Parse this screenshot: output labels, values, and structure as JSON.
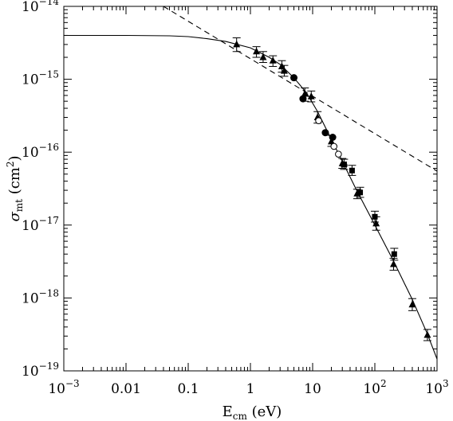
{
  "chart_data": {
    "type": "scatter",
    "xscale": "log",
    "yscale": "log",
    "xlim": [
      0.001,
      1000
    ],
    "ylim": [
      1e-19,
      1e-14
    ],
    "xlabel": {
      "base": "E",
      "sub": "cm",
      "rest": " (eV)"
    },
    "ylabel": {
      "base": "σ",
      "sub": "mt",
      "rest": " (cm",
      "sup": "2",
      "end": ")"
    },
    "xticks": [
      {
        "value": 0.001,
        "base": "10",
        "exp": "−3"
      },
      {
        "value": 0.01,
        "base": "0.01",
        "exp": ""
      },
      {
        "value": 0.1,
        "base": "0.1",
        "exp": ""
      },
      {
        "value": 1,
        "base": "1",
        "exp": ""
      },
      {
        "value": 10,
        "base": "10",
        "exp": ""
      },
      {
        "value": 100,
        "base": "10",
        "exp": "2"
      },
      {
        "value": 1000,
        "base": "10",
        "exp": "3"
      }
    ],
    "yticks": [
      {
        "value": 1e-19,
        "base": "10",
        "exp": "−19"
      },
      {
        "value": 1e-18,
        "base": "10",
        "exp": "−18"
      },
      {
        "value": 1e-17,
        "base": "10",
        "exp": "−17"
      },
      {
        "value": 1e-16,
        "base": "10",
        "exp": "−16"
      },
      {
        "value": 1e-15,
        "base": "10",
        "exp": "−15"
      },
      {
        "value": 1e-14,
        "base": "10",
        "exp": "−14"
      }
    ],
    "series": [
      {
        "marker": "triangle",
        "points": [
          {
            "x": 0.6,
            "y": 3e-15,
            "elo": 2.4e-15,
            "ehi": 3.7e-15
          },
          {
            "x": 1.25,
            "y": 2.4e-15,
            "elo": 2e-15,
            "ehi": 2.8e-15
          },
          {
            "x": 1.6,
            "y": 2e-15,
            "elo": 1.7e-15,
            "ehi": 2.4e-15
          },
          {
            "x": 2.3,
            "y": 1.8e-15,
            "elo": 1.5e-15,
            "ehi": 2.1e-15
          },
          {
            "x": 3.2,
            "y": 1.5e-15,
            "elo": 1.25e-15,
            "ehi": 1.8e-15
          },
          {
            "x": 3.5,
            "y": 1.3e-15,
            "elo": 1.1e-15,
            "ehi": 1.55e-15
          },
          {
            "x": 7.5,
            "y": 6.3e-16,
            "elo": 5e-16,
            "ehi": 7.6e-16
          },
          {
            "x": 9.5,
            "y": 5.8e-16,
            "elo": 4.9e-16,
            "ehi": 6.9e-16
          },
          {
            "x": 12,
            "y": 3e-16,
            "elo": 2.5e-16,
            "ehi": 3.6e-16
          },
          {
            "x": 20,
            "y": 1.4e-16,
            "elo": 1.2e-16,
            "ehi": 1.7e-16
          },
          {
            "x": 30,
            "y": 7e-17,
            "elo": 6e-17,
            "ehi": 8.2e-17
          },
          {
            "x": 52,
            "y": 2.7e-17,
            "elo": 2.3e-17,
            "ehi": 3.1e-17
          },
          {
            "x": 105,
            "y": 1.05e-17,
            "elo": 8.5e-18,
            "ehi": 1.3e-17
          },
          {
            "x": 200,
            "y": 2.9e-18,
            "elo": 2.4e-18,
            "ehi": 3.5e-18
          },
          {
            "x": 400,
            "y": 8.1e-19,
            "elo": 6.7e-19,
            "ehi": 9.8e-19
          },
          {
            "x": 700,
            "y": 3.1e-19,
            "elo": 2.6e-19,
            "ehi": 3.7e-19
          }
        ]
      },
      {
        "marker": "filled-circle",
        "points": [
          {
            "x": 5.0,
            "y": 1.05e-15
          },
          {
            "x": 7.0,
            "y": 5.4e-16
          },
          {
            "x": 16,
            "y": 1.85e-16
          },
          {
            "x": 21,
            "y": 1.6e-16
          }
        ]
      },
      {
        "marker": "open-circle",
        "points": [
          {
            "x": 12.5,
            "y": 2.7e-16
          },
          {
            "x": 22,
            "y": 1.2e-16
          },
          {
            "x": 26,
            "y": 9.4e-17
          },
          {
            "x": 32,
            "y": 6.6e-17
          }
        ]
      },
      {
        "marker": "filled-square",
        "points": [
          {
            "x": 32,
            "y": 6.8e-17,
            "elo": 5.8e-17,
            "ehi": 8e-17
          },
          {
            "x": 43,
            "y": 5.6e-17,
            "elo": 4.8e-17,
            "ehi": 6.6e-17
          },
          {
            "x": 58,
            "y": 2.8e-17,
            "elo": 2.4e-17,
            "ehi": 3.3e-17
          },
          {
            "x": 100,
            "y": 1.3e-17,
            "elo": 1.1e-17,
            "ehi": 1.55e-17
          },
          {
            "x": 205,
            "y": 4e-18,
            "elo": 3.3e-18,
            "ehi": 4.8e-18
          }
        ]
      }
    ],
    "curves": [
      {
        "style": "solid",
        "points": [
          [
            0.001,
            4e-15
          ],
          [
            0.01,
            4e-15
          ],
          [
            0.05,
            3.95e-15
          ],
          [
            0.1,
            3.85e-15
          ],
          [
            0.2,
            3.6e-15
          ],
          [
            0.4,
            3.3e-15
          ],
          [
            1,
            2.7e-15
          ],
          [
            2,
            2e-15
          ],
          [
            3,
            1.6e-15
          ],
          [
            5,
            1.05e-15
          ],
          [
            8,
            6.5e-16
          ],
          [
            12,
            3.6e-16
          ],
          [
            20,
            1.5e-16
          ],
          [
            30,
            7.5e-17
          ],
          [
            50,
            3.1e-17
          ],
          [
            100,
            1e-17
          ],
          [
            200,
            3.2e-18
          ],
          [
            400,
            9.5e-19
          ],
          [
            700,
            3.2e-19
          ],
          [
            1000,
            1.45e-19
          ]
        ]
      },
      {
        "style": "dashed",
        "points": [
          [
            0.04,
            1e-14
          ],
          [
            1000,
            5.5e-17
          ]
        ]
      }
    ]
  }
}
